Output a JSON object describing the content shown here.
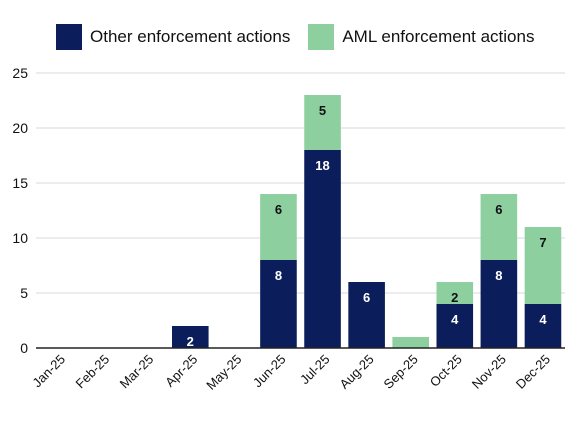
{
  "chart_data": {
    "type": "bar",
    "stacked": true,
    "title": "",
    "xlabel": "",
    "ylabel": "",
    "ylim": [
      0,
      25
    ],
    "yticks": [
      0,
      5,
      10,
      15,
      20,
      25
    ],
    "grid": true,
    "legend": "top",
    "categories": [
      "Jan-25",
      "Feb-25",
      "Mar-25",
      "Apr-25",
      "May-25",
      "Jun-25",
      "Jul-25",
      "Aug-25",
      "Sep-25",
      "Oct-25",
      "Nov-25",
      "Dec-25"
    ],
    "series": [
      {
        "name": "Other enforcement actions",
        "color": "#0b1e5b",
        "label_color": "#ffffff",
        "values": [
          0,
          0,
          0,
          2,
          0,
          8,
          18,
          6,
          0,
          4,
          8,
          4
        ]
      },
      {
        "name": "AML enforcement actions",
        "color": "#8dcf9f",
        "label_color": "#111111",
        "values": [
          0,
          0,
          0,
          0,
          0,
          6,
          5,
          0,
          1,
          2,
          6,
          7
        ]
      }
    ]
  },
  "legend_labels": {
    "other": "Other enforcement actions",
    "aml": "AML enforcement actions"
  },
  "colors": {
    "other": "#0b1e5b",
    "aml": "#8dcf9f",
    "grid": "#d9d9d9",
    "axis": "#222222"
  }
}
